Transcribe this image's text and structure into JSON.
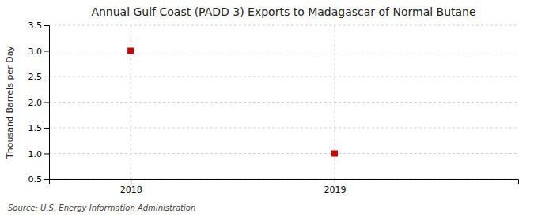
{
  "chart_data": {
    "type": "scatter",
    "title": "Annual Gulf Coast (PADD 3) Exports to Madagascar of Normal Butane",
    "ylabel": "Thousand Barrels per Day",
    "source": "Source: U.S. Energy Information Administration",
    "x": [
      2018,
      2019
    ],
    "values": [
      3.0,
      1.0
    ],
    "color": "#cc0000",
    "marker": "square",
    "xlim": [
      2017.6,
      2019.9
    ],
    "xticks": [
      2018,
      2019
    ],
    "ylim": [
      0.5,
      3.5
    ],
    "yticks": [
      0.5,
      {
        "value": 1.0,
        "label": "1.0"
      },
      1.5,
      {
        "value": 2.0,
        "label": "2.0"
      },
      2.5,
      {
        "value": 3.0,
        "label": "3.0"
      },
      3.5
    ],
    "grid": true
  }
}
